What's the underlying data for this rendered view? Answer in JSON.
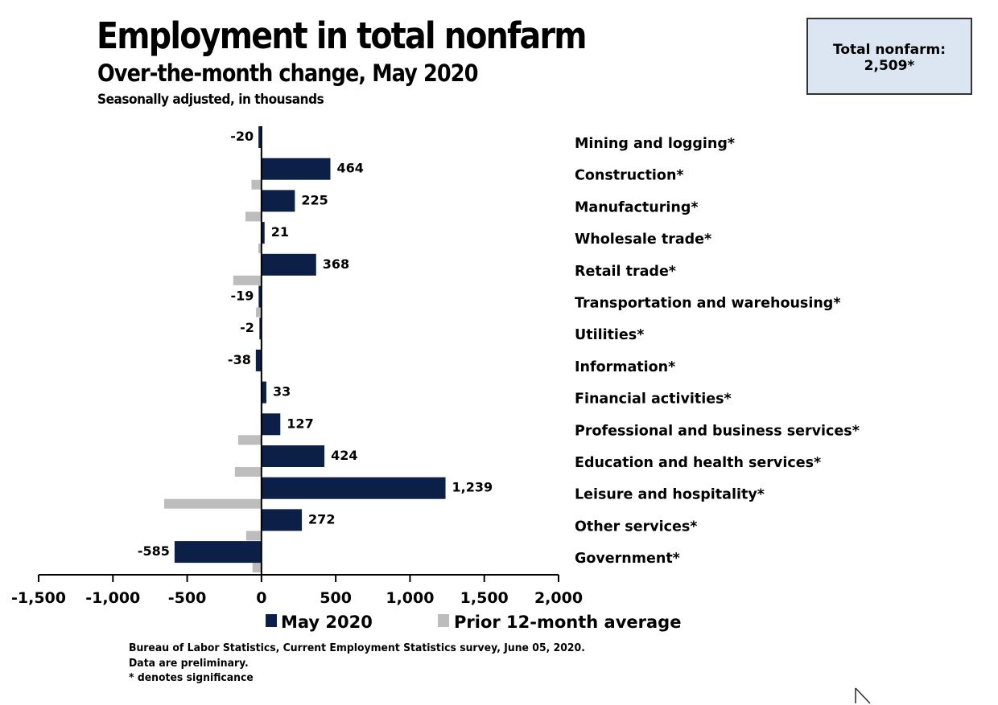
{
  "title": "Employment in total nonfarm",
  "subtitle": "Over-the-month change, May 2020",
  "subtitle2": "Seasonally adjusted, in thousands",
  "total_box": {
    "label": "Total nonfarm:",
    "value": "2,509*"
  },
  "colors": {
    "may_2020": "#0c1f47",
    "prior_avg": "#bdbdbd",
    "box_fill": "#dce6f2"
  },
  "footer": [
    "Bureau of Labor Statistics, Current Employment Statistics survey, June 05, 2020.",
    "Data are preliminary.",
    "* denotes significance"
  ],
  "chart_data": {
    "type": "bar",
    "orientation": "horizontal",
    "title": "Employment in total nonfarm",
    "subtitle": "Over-the-month change, May 2020",
    "xlabel": "",
    "ylabel": "",
    "units": "thousands",
    "xlim": [
      -1500,
      2000
    ],
    "xticks": [
      -1500,
      -1000,
      -500,
      0,
      500,
      1000,
      1500,
      2000
    ],
    "xtick_labels": [
      "-1,500",
      "-1,000",
      "-500",
      "0",
      "500",
      "1,000",
      "1,500",
      "2,000"
    ],
    "grid": false,
    "legend_position": "bottom",
    "categories": [
      "Mining and logging*",
      "Construction*",
      "Manufacturing*",
      "Wholesale trade*",
      "Retail trade*",
      "Transportation and warehousing*",
      "Utilities*",
      "Information*",
      "Financial activities*",
      "Professional and business services*",
      "Education and health services*",
      "Leisure and hospitality*",
      "Other services*",
      "Government*"
    ],
    "series": [
      {
        "name": "May 2020",
        "values": [
          -20,
          464,
          225,
          21,
          368,
          -19,
          -2,
          -38,
          33,
          127,
          424,
          1239,
          272,
          -585
        ],
        "labels": [
          "-20",
          "464",
          "225",
          "21",
          "368",
          "-19",
          "-2",
          "-38",
          "33",
          "127",
          "424",
          "1,239",
          "272",
          "-585"
        ]
      },
      {
        "name": "Prior 12-month average",
        "values": [
          -3,
          -67,
          -108,
          -21,
          -190,
          -37,
          -1,
          -3,
          8,
          -157,
          -179,
          -655,
          -103,
          -60
        ]
      }
    ]
  }
}
